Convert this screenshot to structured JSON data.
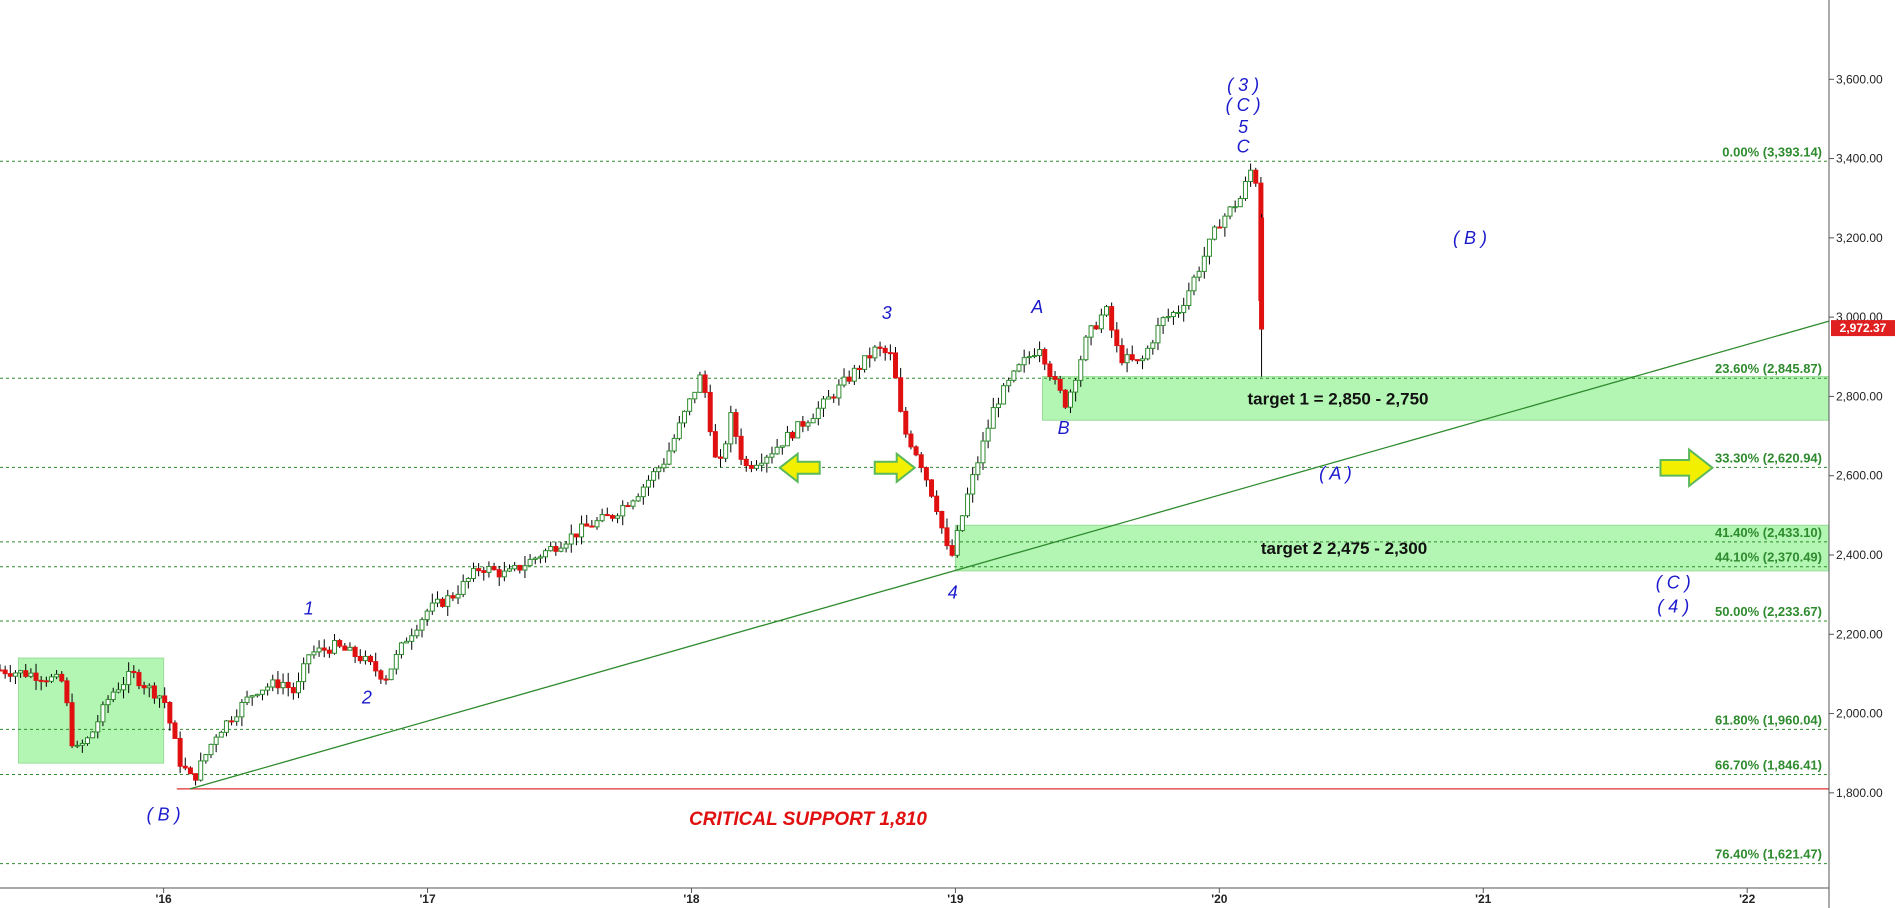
{
  "chart_data": {
    "type": "candlestick",
    "title": "",
    "xlabel": "",
    "ylabel": "",
    "ylim": [
      1560,
      3800
    ],
    "y_ticks": [
      "1,800.00",
      "2,000.00",
      "2,200.00",
      "2,400.00",
      "2,600.00",
      "2,800.00",
      "3,000.00",
      "3,200.00",
      "3,400.00",
      "3,600.00"
    ],
    "y_tick_values": [
      1800,
      2000,
      2200,
      2400,
      2600,
      2800,
      3000,
      3200,
      3400,
      3600
    ],
    "x_range": [
      2015.38,
      2022.31
    ],
    "x_ticks": [
      "'16",
      "'17",
      "'18",
      "'19",
      "'20",
      "'21",
      "'22"
    ],
    "x_tick_values": [
      2016,
      2017,
      2018,
      2019,
      2020,
      2021,
      2022
    ],
    "current_price": {
      "label": "2,972.37",
      "value": 2972.37
    },
    "fib_levels": [
      {
        "label": "0.00% (3,393.14)",
        "value": 3393.14
      },
      {
        "label": "23.60% (2,845.87)",
        "value": 2845.87
      },
      {
        "label": "33.30% (2,620.94)",
        "value": 2620.94
      },
      {
        "label": "41.40% (2,433.10)",
        "value": 2433.1
      },
      {
        "label": "44.10% (2,370.49)",
        "value": 2370.49
      },
      {
        "label": "50.00% (2,233.67)",
        "value": 2233.67
      },
      {
        "label": "61.80% (1,960.04)",
        "value": 1960.04
      },
      {
        "label": "66.70% (1,846.41)",
        "value": 1846.41
      },
      {
        "label": "76.40% (1,621.47)",
        "value": 1621.47
      }
    ],
    "critical_support": {
      "label": "CRITICAL SUPPORT 1,810",
      "value": 1810
    },
    "zones": [
      {
        "label": "target 1 = 2,850 - 2,750",
        "x0": 2019.33,
        "x1": 2022.31,
        "y0": 2740,
        "y1": 2850
      },
      {
        "label": "target 2 2,475 - 2,300",
        "x0": 2019.0,
        "x1": 2022.31,
        "y0": 2360,
        "y1": 2475
      },
      {
        "label": "",
        "x0": 2015.45,
        "x1": 2016.0,
        "y0": 1875,
        "y1": 2140
      }
    ],
    "trendline": {
      "x0": 2016.1,
      "y0": 1810,
      "x1": 2022.31,
      "y1": 2990
    },
    "wave_labels": [
      {
        "text": "( B )",
        "x": 2016.0,
        "y": 1730
      },
      {
        "text": "1",
        "x": 2016.55,
        "y": 2250
      },
      {
        "text": "2",
        "x": 2016.77,
        "y": 2025
      },
      {
        "text": "3",
        "x": 2018.74,
        "y": 2995
      },
      {
        "text": "4",
        "x": 2018.99,
        "y": 2290
      },
      {
        "text": "A",
        "x": 2019.31,
        "y": 3010
      },
      {
        "text": "B",
        "x": 2019.41,
        "y": 2705
      },
      {
        "text": "( 3 )",
        "x": 2020.09,
        "y": 3570
      },
      {
        "text": "( C )",
        "x": 2020.09,
        "y": 3520
      },
      {
        "text": "5",
        "x": 2020.09,
        "y": 3465
      },
      {
        "text": "C",
        "x": 2020.09,
        "y": 3415
      },
      {
        "text": "( B )",
        "x": 2020.95,
        "y": 3185
      },
      {
        "text": "( A )",
        "x": 2020.44,
        "y": 2590
      },
      {
        "text": "( C )",
        "x": 2021.72,
        "y": 2315
      },
      {
        "text": "( 4 )",
        "x": 2021.72,
        "y": 2255
      }
    ],
    "arrows": [
      {
        "direction": "left",
        "x": 2018.41,
        "y": 2620
      },
      {
        "direction": "right",
        "x": 2018.77,
        "y": 2620
      },
      {
        "direction": "right",
        "x": 2021.77,
        "y": 2620
      }
    ],
    "price_path": [
      [
        2015.38,
        2110
      ],
      [
        2015.5,
        2100
      ],
      [
        2015.62,
        2080
      ],
      [
        2015.66,
        1900
      ],
      [
        2015.72,
        1940
      ],
      [
        2015.8,
        2050
      ],
      [
        2015.88,
        2100
      ],
      [
        2015.95,
        2060
      ],
      [
        2016.0,
        2040
      ],
      [
        2016.06,
        1880
      ],
      [
        2016.11,
        1830
      ],
      [
        2016.2,
        1950
      ],
      [
        2016.35,
        2060
      ],
      [
        2016.45,
        2080
      ],
      [
        2016.5,
        2050
      ],
      [
        2016.55,
        2150
      ],
      [
        2016.65,
        2170
      ],
      [
        2016.75,
        2140
      ],
      [
        2016.84,
        2090
      ],
      [
        2016.92,
        2190
      ],
      [
        2017.0,
        2260
      ],
      [
        2017.1,
        2300
      ],
      [
        2017.2,
        2370
      ],
      [
        2017.3,
        2350
      ],
      [
        2017.4,
        2390
      ],
      [
        2017.5,
        2430
      ],
      [
        2017.6,
        2470
      ],
      [
        2017.7,
        2500
      ],
      [
        2017.8,
        2560
      ],
      [
        2017.9,
        2640
      ],
      [
        2018.04,
        2860
      ],
      [
        2018.1,
        2600
      ],
      [
        2018.15,
        2750
      ],
      [
        2018.2,
        2620
      ],
      [
        2018.3,
        2660
      ],
      [
        2018.4,
        2720
      ],
      [
        2018.5,
        2780
      ],
      [
        2018.6,
        2850
      ],
      [
        2018.7,
        2920
      ],
      [
        2018.76,
        2900
      ],
      [
        2018.8,
        2720
      ],
      [
        2018.86,
        2650
      ],
      [
        2018.93,
        2520
      ],
      [
        2018.98,
        2380
      ],
      [
        2019.05,
        2560
      ],
      [
        2019.15,
        2780
      ],
      [
        2019.25,
        2880
      ],
      [
        2019.32,
        2930
      ],
      [
        2019.37,
        2840
      ],
      [
        2019.42,
        2780
      ],
      [
        2019.5,
        2950
      ],
      [
        2019.57,
        3020
      ],
      [
        2019.62,
        2900
      ],
      [
        2019.7,
        2880
      ],
      [
        2019.78,
        2990
      ],
      [
        2019.85,
        3020
      ],
      [
        2019.92,
        3120
      ],
      [
        2020.0,
        3240
      ],
      [
        2020.08,
        3300
      ],
      [
        2020.13,
        3390
      ],
      [
        2020.15,
        3280
      ],
      [
        2020.16,
        2972.37
      ]
    ]
  }
}
